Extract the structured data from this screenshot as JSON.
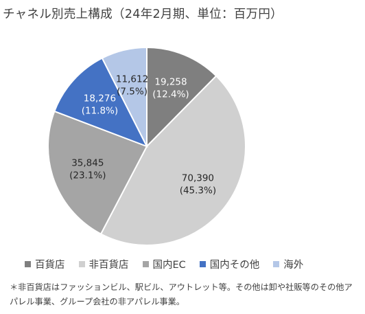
{
  "title": "チャネル別売上構成（24年2月期、単位：百万円）",
  "chart_data": {
    "type": "pie",
    "title": "チャネル別売上構成（24年2月期、単位：百万円）",
    "legend_position": "bottom",
    "slices": [
      {
        "name": "百貨店",
        "value": 19258,
        "value_label": "19,258",
        "pct_label": "(12.4%)",
        "color": "#7f7f7f",
        "label_color": "#ffffff"
      },
      {
        "name": "非百貨店",
        "value": 70390,
        "value_label": "70,390",
        "pct_label": "(45.3%)",
        "color": "#d0d0d0",
        "label_color": "#262626"
      },
      {
        "name": "国内EC",
        "value": 35845,
        "value_label": "35,845",
        "pct_label": "(23.1%)",
        "color": "#a5a5a5",
        "label_color": "#262626"
      },
      {
        "name": "国内その他",
        "value": 18276,
        "value_label": "18,276",
        "pct_label": "(11.8%)",
        "color": "#4472c4",
        "label_color": "#ffffff"
      },
      {
        "name": "海外",
        "value": 11612,
        "value_label": "11,612",
        "pct_label": "(7.5%)",
        "color": "#b4c7e7",
        "label_color": "#262626"
      }
    ]
  },
  "footnote": "＊非百貨店はファッションビル、駅ビル、アウトレット等。その他は卸や社販等のその他アパレル事業、グループ会社の非アパレル事業。"
}
